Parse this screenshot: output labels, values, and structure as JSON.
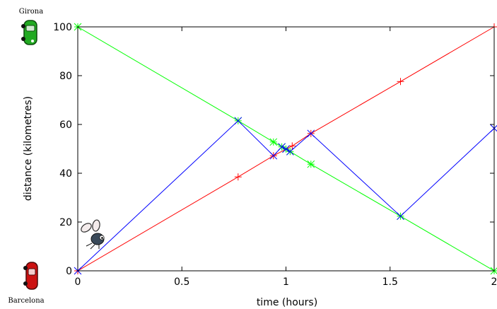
{
  "chart_data": {
    "type": "line",
    "title": "",
    "xlabel": "time (hours)",
    "ylabel": "distance (kilometres)",
    "xlim": [
      0,
      2
    ],
    "ylim": [
      0,
      100
    ],
    "xticks": [
      0,
      0.5,
      1,
      1.5,
      2
    ],
    "xtick_labels": [
      "0",
      "0.5",
      "1",
      "1.5",
      "2"
    ],
    "yticks": [
      0,
      20,
      40,
      60,
      80,
      100
    ],
    "ytick_labels": [
      "0",
      "20",
      "40",
      "60",
      "80",
      "100"
    ],
    "grid": false,
    "legend": "none",
    "annotations": {
      "top_city": "Girona",
      "bottom_city": "Barcelona"
    },
    "series": [
      {
        "color": "#ff0000",
        "marker": "plus",
        "x": [
          0,
          0.77,
          0.94,
          1.03,
          1.12,
          1.55,
          2.0
        ],
        "y": [
          0,
          38.5,
          47.2,
          51.2,
          56.3,
          77.6,
          100
        ]
      },
      {
        "color": "#00ff00",
        "marker": "star",
        "x": [
          0,
          0.77,
          0.94,
          0.98,
          1.0,
          1.02,
          1.12,
          1.55,
          2.0
        ],
        "y": [
          100,
          61.5,
          52.8,
          50.8,
          49.9,
          48.9,
          43.7,
          22.4,
          0
        ]
      },
      {
        "color": "#0000ff",
        "marker": "x",
        "x": [
          0,
          0.77,
          0.94,
          0.98,
          1.0,
          1.02,
          1.12,
          1.55,
          2.0
        ],
        "y": [
          0,
          61.5,
          47.2,
          50.8,
          49.9,
          48.9,
          56.3,
          22.4,
          58.4
        ]
      }
    ],
    "icons": {
      "top_car": "green-car-icon",
      "bottom_car": "red-car-icon",
      "fly": "fly-icon"
    }
  }
}
